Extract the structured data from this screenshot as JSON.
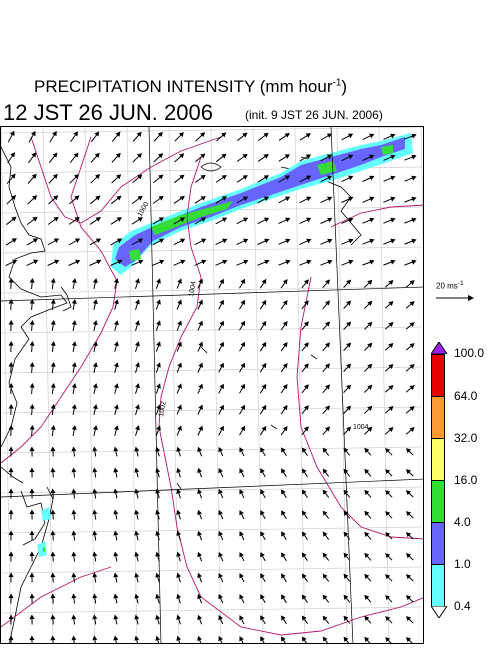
{
  "header": {
    "title": "PRECIPITATION INTENSITY (mm hour",
    "title_sup": "-1",
    "title_close": ")",
    "time": "12 JST 26 JUN. 2006",
    "init": "(init. 9 JST 26 JUN. 2006)"
  },
  "scale": {
    "label": "20 ms",
    "label_sup": "-1"
  },
  "colorbar": {
    "labels": [
      "100.0",
      "64.0",
      "32.0",
      "16.0",
      "4.0",
      "1.0",
      "0.4"
    ],
    "colors": {
      "top": "#a020f0",
      "r64": "#e60000",
      "r32": "#ff9933",
      "r16": "#ffff66",
      "r4": "#33dd33",
      "r1": "#6666ff",
      "r04": "#66ffff",
      "bottom": "#ffffff"
    }
  },
  "contours": {
    "labels": [
      "1000",
      "1004",
      "1002",
      "1004"
    ]
  }
}
